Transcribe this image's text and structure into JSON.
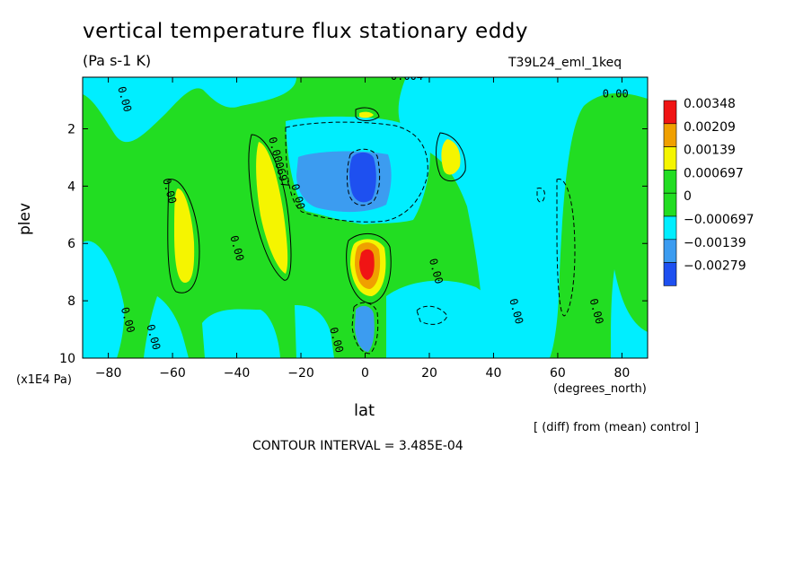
{
  "title": "vertical temperature flux stationary eddy",
  "units": "(Pa s-1 K)",
  "run_name": "T39L24_eml_1keq",
  "y_unit": "(x1E4 Pa)",
  "x_unit": "(degrees_north)",
  "diff_note": "[ (diff) from (mean) control ]",
  "contour_interval": "CONTOUR INTERVAL = 3.485E-04",
  "chart_data": {
    "type": "heatmap",
    "xlabel": "lat",
    "ylabel": "plev",
    "xlim": [
      -88,
      88
    ],
    "ylim": [
      10,
      0.2
    ],
    "x_ticks": [
      -80,
      -60,
      -40,
      -20,
      0,
      20,
      40,
      60,
      80
    ],
    "x_tick_labels": [
      "−80",
      "−60",
      "−40",
      "−20",
      "0",
      "20",
      "40",
      "60",
      "80"
    ],
    "y_ticks": [
      2,
      4,
      6,
      8,
      10
    ],
    "y_tick_labels": [
      "2",
      "4",
      "6",
      "8",
      "10"
    ],
    "legend": {
      "placement": "right",
      "levels": [
        "0.00348",
        "0.00209",
        "0.00139",
        "0.000697",
        "0",
        "−0.000697",
        "−0.00139",
        "−0.00279"
      ],
      "colors": [
        "#f01414",
        "#f0a000",
        "#f5f500",
        "#22dd22",
        "#22dd22",
        "#00eeff",
        "#3c9cf0",
        "#1e50f0"
      ]
    },
    "regions": [
      {
        "class": "pos1",
        "lat_range": [
          -88,
          88
        ],
        "plev_range": [
          0.2,
          10
        ],
        "color": "#22dd22",
        "note": "background 0 to 0.000697"
      },
      {
        "class": "pos2",
        "center": [
          -55,
          5.0
        ],
        "color": "#f5f500"
      },
      {
        "class": "pos2",
        "center": [
          -31,
          4.3
        ],
        "color": "#f5f500"
      },
      {
        "class": "pos2",
        "center": [
          27,
          3.0
        ],
        "color": "#f5f500"
      },
      {
        "class": "pos2",
        "center": [
          0,
          6.6
        ],
        "color": "#f5f500"
      },
      {
        "class": "pos3",
        "center": [
          0,
          6.6
        ],
        "color": "#f0a000"
      },
      {
        "class": "pos4",
        "center": [
          0,
          6.6
        ],
        "color": "#f01414"
      },
      {
        "class": "neg1",
        "center": [
          -10,
          3.6
        ],
        "color": "#3c9cf0"
      },
      {
        "class": "neg2",
        "center": [
          -1,
          3.8
        ],
        "color": "#1e50f0"
      }
    ],
    "contour_labels": [
      {
        "text": "0.00",
        "lat": -76,
        "plev": 1.0
      },
      {
        "text": "0.00",
        "lat": -62,
        "plev": 4.2
      },
      {
        "text": "0.00",
        "lat": -41,
        "plev": 6.2
      },
      {
        "text": "0.00",
        "lat": -75,
        "plev": 8.7
      },
      {
        "text": "0.00",
        "lat": -67,
        "plev": 9.3
      },
      {
        "text": "0.000697",
        "lat": -28,
        "plev": 3.2
      },
      {
        "text": "0.00",
        "lat": -22,
        "plev": 4.4
      },
      {
        "text": "0.00",
        "lat": -10,
        "plev": 9.4
      },
      {
        "text": "0.004",
        "lat": 13,
        "plev": 0.3
      },
      {
        "text": "0.00",
        "lat": 21,
        "plev": 7.0
      },
      {
        "text": "0.00",
        "lat": 46,
        "plev": 8.4
      },
      {
        "text": "0.00",
        "lat": 71,
        "plev": 8.4
      },
      {
        "text": "0.00",
        "lat": 78,
        "plev": 0.9
      }
    ]
  }
}
